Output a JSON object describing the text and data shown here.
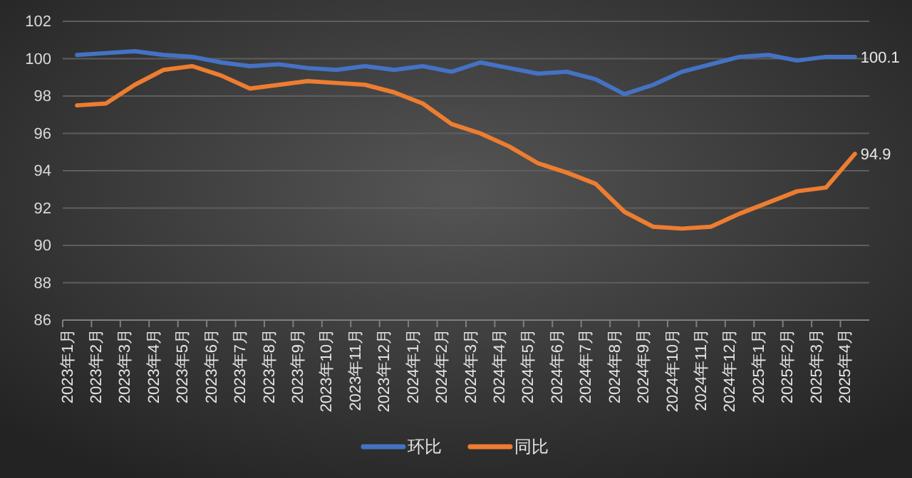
{
  "chart_data": {
    "type": "line",
    "categories": [
      "2023年1月",
      "2023年2月",
      "2023年3月",
      "2023年4月",
      "2023年5月",
      "2023年6月",
      "2023年7月",
      "2023年8月",
      "2023年9月",
      "2023年10月",
      "2023年11月",
      "2023年12月",
      "2024年1月",
      "2024年2月",
      "2024年3月",
      "2024年4月",
      "2024年5月",
      "2024年6月",
      "2024年7月",
      "2024年8月",
      "2024年9月",
      "2024年10月",
      "2024年11月",
      "2024年12月",
      "2025年1月",
      "2025年2月",
      "2025年3月",
      "2025年4月"
    ],
    "series": [
      {
        "name": "环比",
        "color": "#4472c4",
        "values": [
          100.2,
          100.3,
          100.4,
          100.2,
          100.1,
          99.8,
          99.6,
          99.7,
          99.5,
          99.4,
          99.6,
          99.4,
          99.6,
          99.3,
          99.8,
          99.5,
          99.2,
          99.3,
          98.9,
          98.1,
          98.6,
          99.3,
          99.7,
          100.1,
          100.2,
          99.9,
          100.1,
          100.1
        ],
        "value_labels": [
          null,
          null,
          null,
          null,
          null,
          null,
          null,
          null,
          null,
          null,
          null,
          null,
          null,
          null,
          null,
          null,
          null,
          null,
          null,
          null,
          null,
          null,
          null,
          null,
          null,
          null,
          null,
          "100.1"
        ]
      },
      {
        "name": "同比",
        "color": "#ed7d31",
        "values": [
          97.5,
          97.6,
          98.6,
          99.4,
          99.6,
          99.1,
          98.4,
          98.6,
          98.8,
          98.7,
          98.6,
          98.2,
          97.6,
          96.5,
          96.0,
          95.3,
          94.4,
          93.9,
          93.3,
          91.8,
          91.0,
          90.9,
          91.0,
          91.7,
          92.3,
          92.9,
          93.1,
          94.9
        ],
        "value_labels": [
          null,
          null,
          null,
          null,
          null,
          null,
          null,
          null,
          null,
          null,
          null,
          null,
          null,
          null,
          null,
          null,
          null,
          null,
          null,
          null,
          null,
          null,
          null,
          null,
          null,
          null,
          null,
          "94.9"
        ]
      }
    ],
    "ylim": [
      86,
      102
    ],
    "yticks": [
      86,
      88,
      90,
      92,
      94,
      96,
      98,
      100,
      102
    ],
    "grid": "y",
    "legend": "bottom",
    "marker": "none",
    "line_style": "solid"
  }
}
